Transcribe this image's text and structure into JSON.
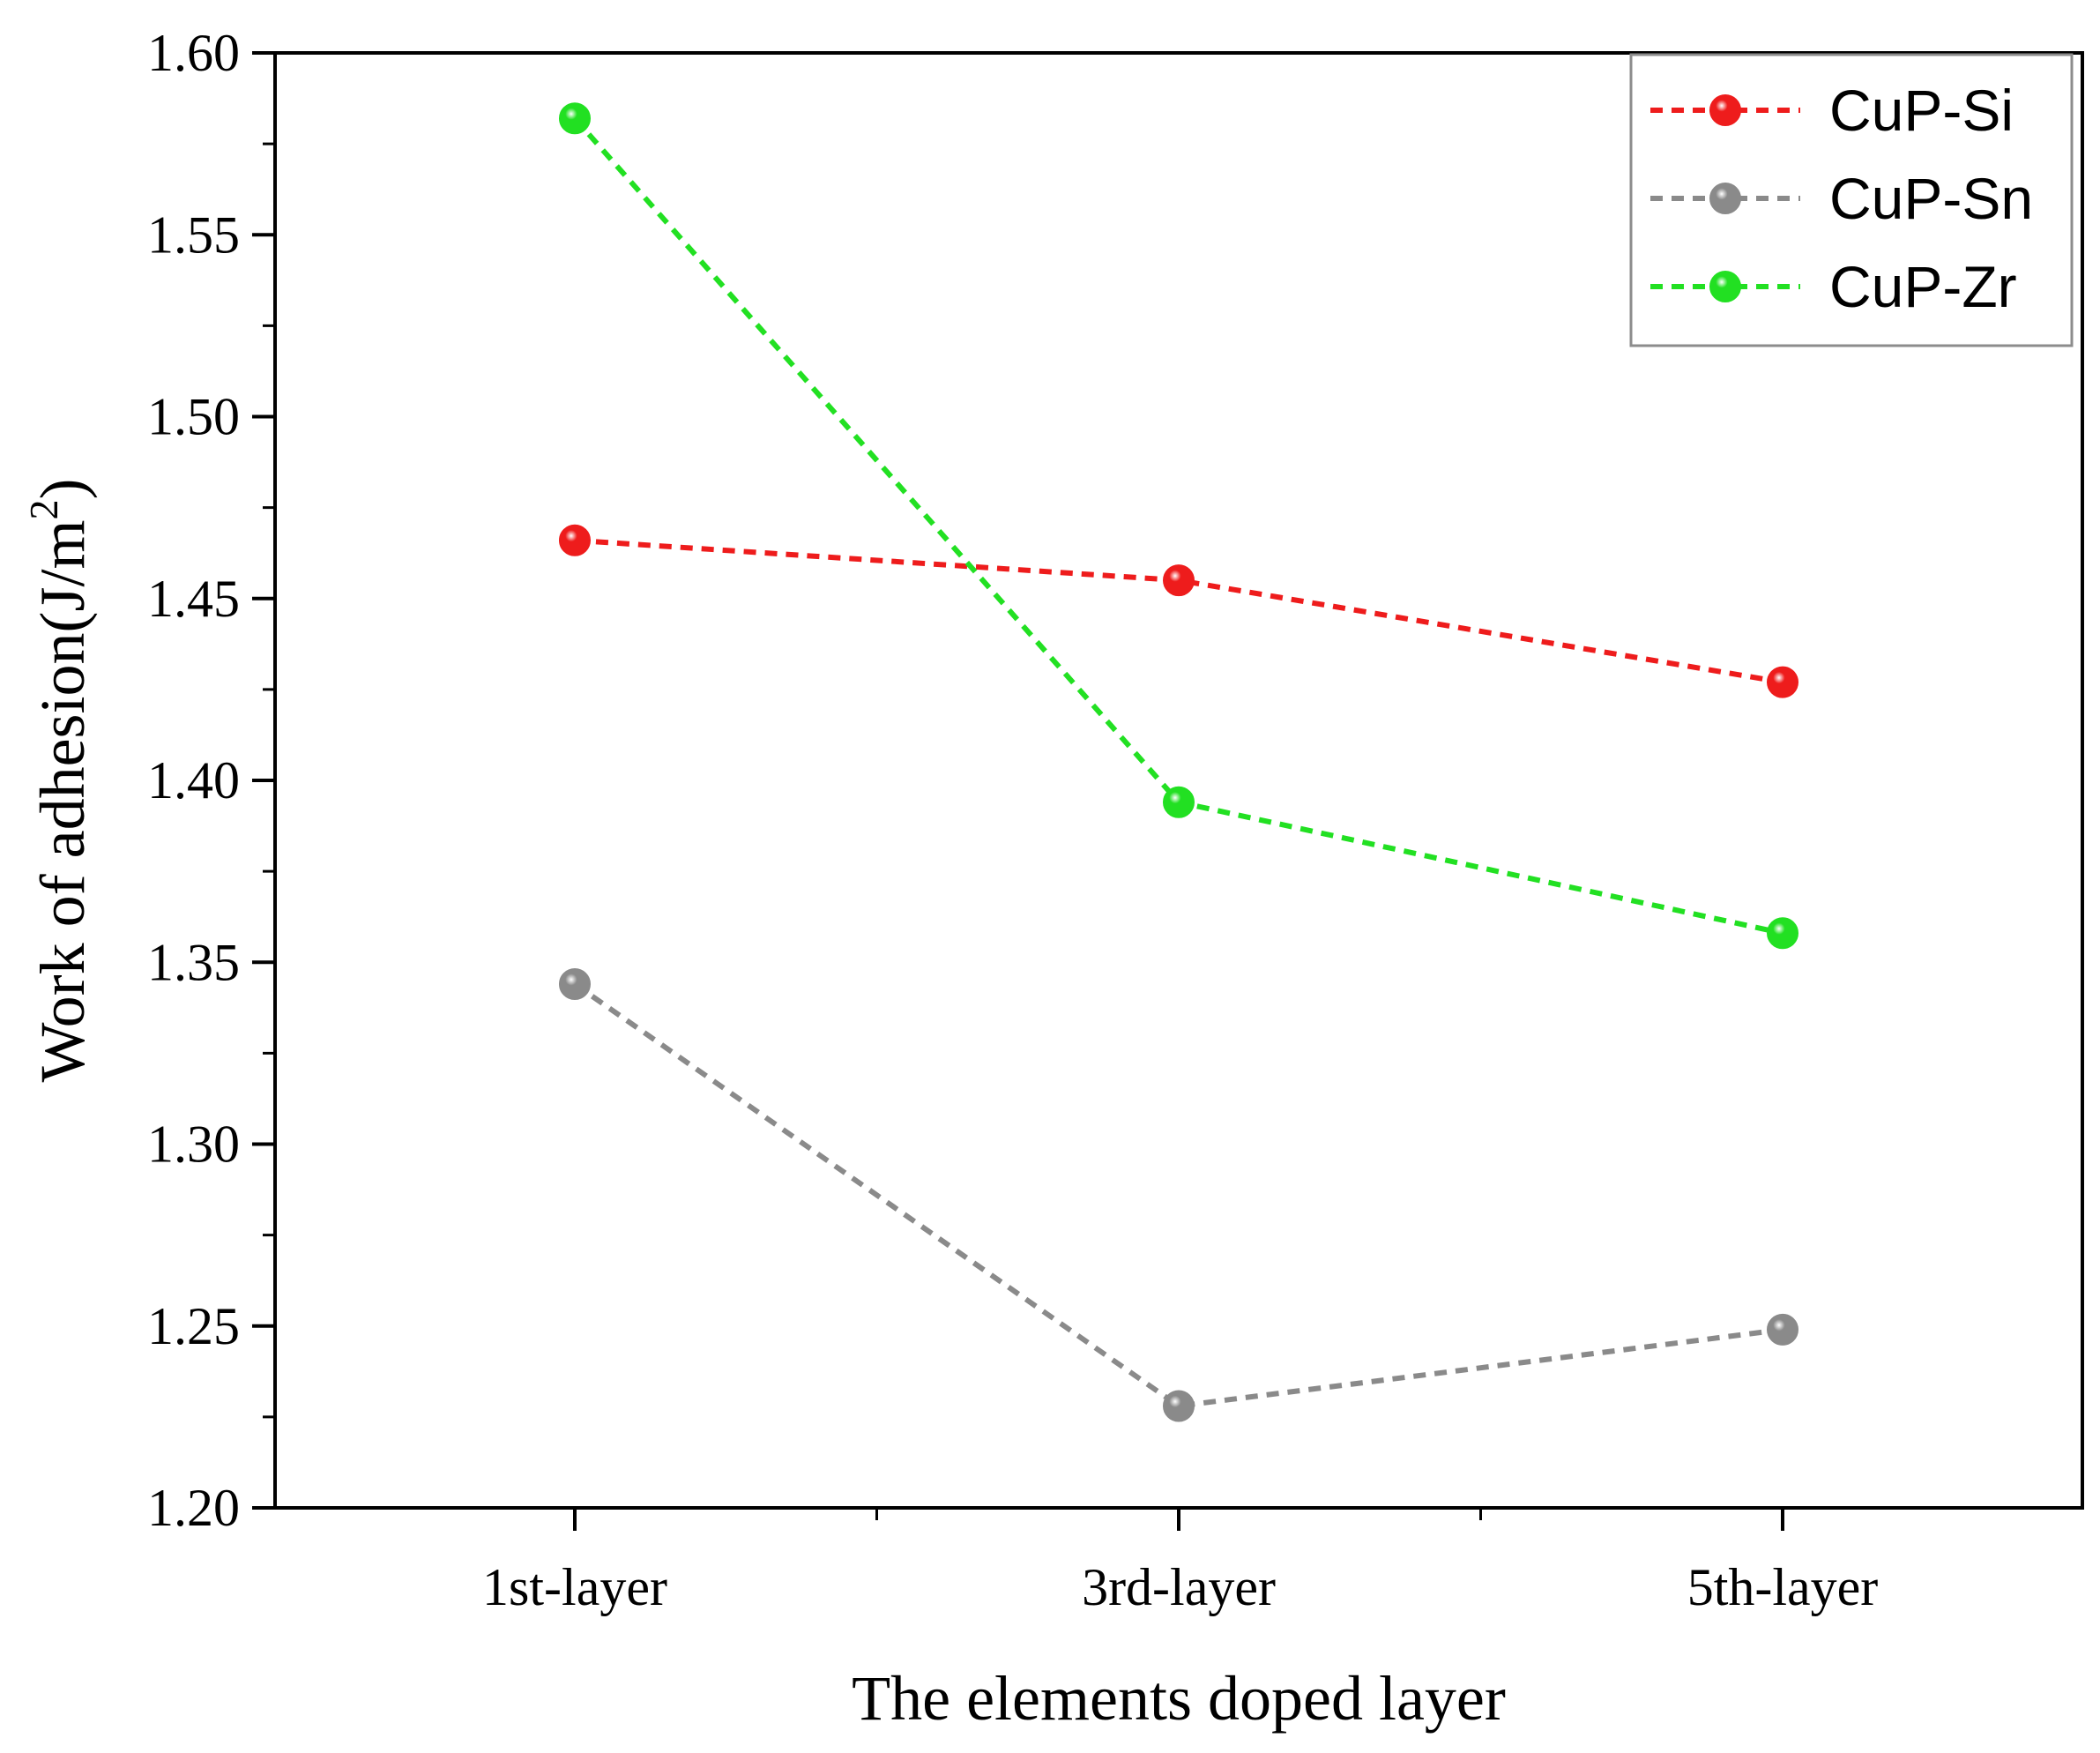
{
  "chart_data": {
    "type": "line",
    "title": "",
    "xlabel": "The elements doped layer",
    "ylabel": "Work of adhesion(J/m",
    "ylabel_superscript": "2",
    "ylabel_close": ")",
    "categories": [
      "1st-layer",
      "3rd-layer",
      "5th-layer"
    ],
    "ylim": [
      1.2,
      1.6
    ],
    "yticks": [
      "1.20",
      "1.25",
      "1.30",
      "1.35",
      "1.40",
      "1.45",
      "1.50",
      "1.55",
      "1.60"
    ],
    "grid": false,
    "legend_position": "top-right",
    "series": [
      {
        "name": "CuP-Si",
        "color": "#ee1c1c",
        "values": [
          1.466,
          1.455,
          1.427
        ]
      },
      {
        "name": "CuP-Sn",
        "color": "#8a8a8a",
        "values": [
          1.344,
          1.228,
          1.249
        ]
      },
      {
        "name": "CuP-Zr",
        "color": "#22e022",
        "values": [
          1.582,
          1.394,
          1.358
        ]
      }
    ]
  }
}
